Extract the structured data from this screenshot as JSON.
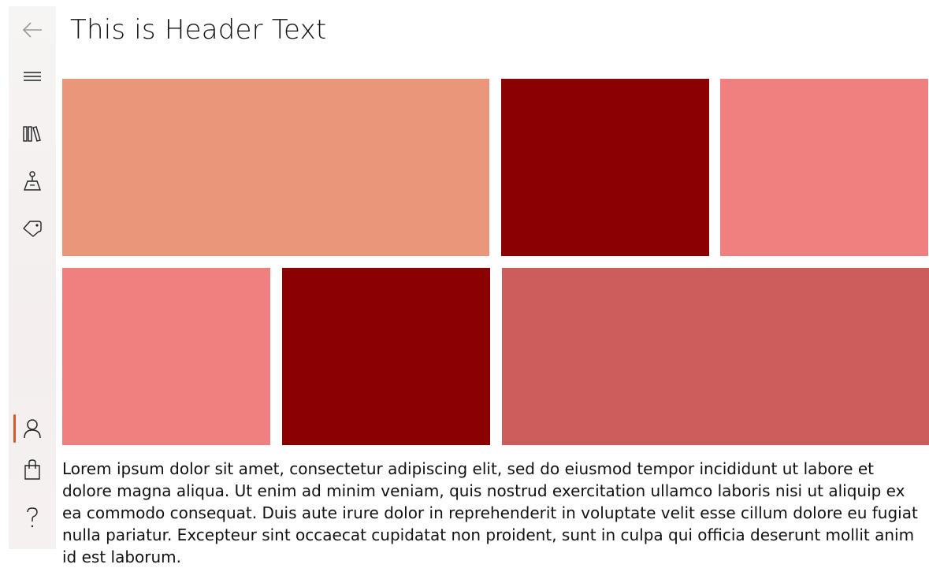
{
  "header": {
    "title": "This is Header Text"
  },
  "nav": {
    "items": [
      {
        "name": "back-icon",
        "selected": false
      },
      {
        "name": "hamburger-menu-icon",
        "selected": false
      },
      {
        "name": "library-icon",
        "selected": false
      },
      {
        "name": "map-pin-icon",
        "selected": false
      },
      {
        "name": "tag-icon",
        "selected": false
      },
      {
        "name": "person-icon",
        "selected": true
      },
      {
        "name": "shopping-bag-icon",
        "selected": false
      },
      {
        "name": "help-icon",
        "selected": false
      }
    ],
    "accent_color": "#d2592e"
  },
  "tiles": [
    {
      "color": "#e9967a"
    },
    {
      "color": "#8b0000"
    },
    {
      "color": "#f08080"
    },
    {
      "color": "#f08080"
    },
    {
      "color": "#8b0000"
    },
    {
      "color": "#cd5c5c"
    }
  ],
  "body": {
    "text": "Lorem ipsum dolor sit amet, consectetur adipiscing elit, sed do eiusmod tempor incididunt ut labore et dolore magna aliqua. Ut enim ad minim veniam, quis nostrud exercitation ullamco laboris nisi ut aliquip ex ea commodo consequat. Duis aute irure dolor in reprehenderit in voluptate velit esse cillum dolore eu fugiat nulla pariatur. Excepteur sint occaecat cupidatat non proident, sunt in culpa qui officia deserunt mollit anim id est laborum."
  }
}
